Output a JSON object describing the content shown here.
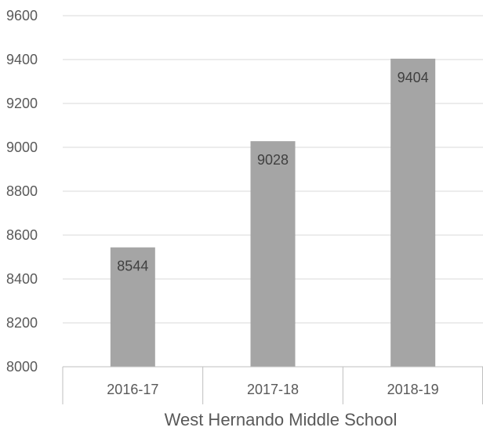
{
  "chart_data": {
    "type": "bar",
    "title": "",
    "xlabel": "West Hernando Middle School",
    "ylabel": "",
    "categories": [
      "2016-17",
      "2017-18",
      "2018-19"
    ],
    "values": [
      8544,
      9028,
      9404
    ],
    "data_labels": [
      "8544",
      "9028",
      "9404"
    ],
    "ylim": [
      8000,
      9600
    ],
    "y_ticks": [
      8000,
      8200,
      8400,
      8600,
      8800,
      9000,
      9200,
      9400,
      9600
    ],
    "grid": true,
    "legend": "none",
    "colors": {
      "bar": "#a5a5a5",
      "grid": "#d9d9d9",
      "axis": "#bfbfbf",
      "text": "#595959"
    }
  }
}
